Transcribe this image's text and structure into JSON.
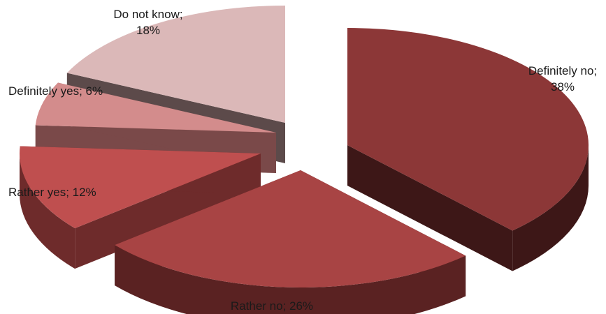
{
  "chart_data": {
    "type": "pie",
    "title": "",
    "exploded": true,
    "three_d": true,
    "slices": [
      {
        "label": "Definitely no",
        "value": 38,
        "display": "38%",
        "color": "#8c3737",
        "side_color": "#3d1717"
      },
      {
        "label": "Rather no",
        "value": 26,
        "display": "26%",
        "color": "#a84444",
        "side_color": "#5a2222"
      },
      {
        "label": "Rather yes",
        "value": 12,
        "display": "12%",
        "color": "#bf4f4f",
        "side_color": "#6e2b2b"
      },
      {
        "label": "Definitely yes",
        "value": 6,
        "display": "6%",
        "color": "#d38c8c",
        "side_color": "#7a4949"
      },
      {
        "label": "Do not know",
        "value": 18,
        "display": "18%",
        "color": "#dbb8b8",
        "side_color": "#5c4a4a"
      }
    ]
  }
}
